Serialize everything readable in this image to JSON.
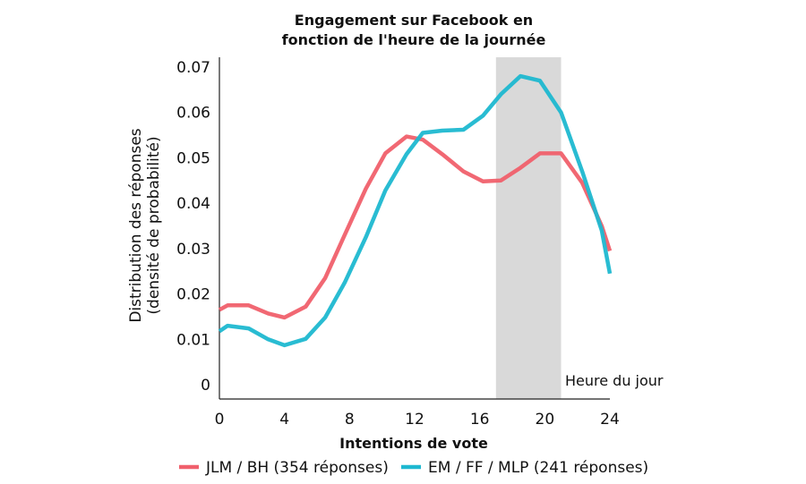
{
  "chart_data": {
    "type": "line",
    "title_line1": "Engagement sur Facebook en",
    "title_line2": "fonction de l'heure de la journée",
    "xlabel": "Intentions de vote",
    "ylabel_line1": "Distribution des réponses",
    "ylabel_line2": "(densité de probabilité)",
    "annotation": "Heure du jour",
    "xlim": [
      0,
      24
    ],
    "ylim": [
      0,
      0.07
    ],
    "xticks": [
      0,
      4,
      8,
      12,
      16,
      20,
      24
    ],
    "yticks": [
      "0",
      "0.01",
      "0.02",
      "0.03",
      "0.04",
      "0.05",
      "0.06",
      "0.07"
    ],
    "highlight_band": [
      17,
      21
    ],
    "legend_position": "bottom",
    "series": [
      {
        "name": "JLM / BH (354 réponses)",
        "color": "#f0606c",
        "x": [
          0,
          0.5,
          1.8,
          3,
          4,
          5.3,
          6.5,
          7.7,
          9,
          10.2,
          11.5,
          12.5,
          13.7,
          15,
          16.2,
          17.3,
          18.5,
          19.7,
          21,
          22.3,
          23.5,
          24
        ],
        "values": [
          0.0165,
          0.0175,
          0.0175,
          0.0157,
          0.0148,
          0.0172,
          0.0235,
          0.033,
          0.0432,
          0.051,
          0.0547,
          0.054,
          0.0508,
          0.047,
          0.0448,
          0.045,
          0.0478,
          0.051,
          0.051,
          0.0445,
          0.035,
          0.0295
        ]
      },
      {
        "name": "EM / FF / MLP (241 réponses)",
        "color": "#1eb8d0",
        "x": [
          0,
          0.5,
          1.8,
          3,
          4,
          5.3,
          6.5,
          7.7,
          9,
          10.2,
          11.5,
          12.5,
          13.7,
          15,
          16.2,
          17.3,
          18.5,
          19.7,
          21,
          22.3,
          23.5,
          24
        ],
        "values": [
          0.0118,
          0.013,
          0.0124,
          0.01,
          0.0087,
          0.0101,
          0.0148,
          0.0225,
          0.0325,
          0.0428,
          0.0508,
          0.0555,
          0.056,
          0.0562,
          0.0593,
          0.064,
          0.068,
          0.067,
          0.06,
          0.047,
          0.034,
          0.0245
        ]
      }
    ]
  }
}
